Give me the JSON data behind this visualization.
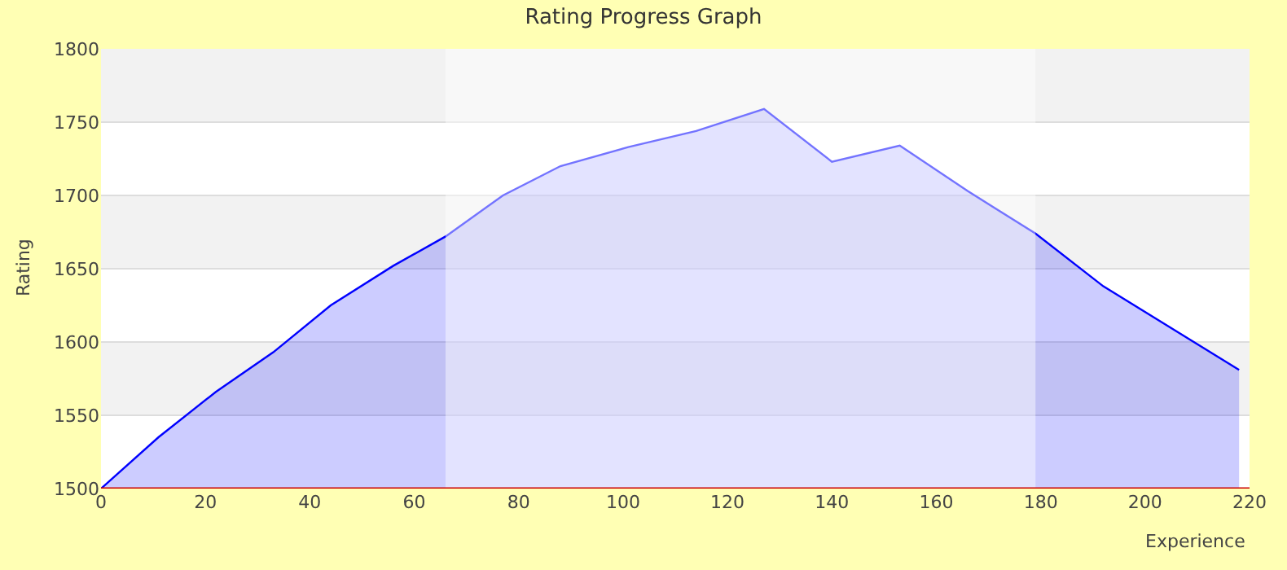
{
  "chart_data": {
    "type": "area",
    "title": "Rating Progress Graph",
    "xlabel": "Experience",
    "ylabel": "Rating",
    "x": [
      0,
      11,
      22,
      33,
      44,
      56,
      66,
      77,
      88,
      101,
      114,
      127,
      140,
      153,
      166,
      179,
      192,
      218
    ],
    "series": [
      {
        "color": "#0000ff",
        "values": [
          1500,
          1535,
          1566,
          1593,
          1625,
          1652,
          1672,
          1700,
          1720,
          1733,
          1744,
          1759,
          1723,
          1734,
          1703,
          1674,
          1638,
          1581
        ]
      }
    ],
    "bands": [
      {
        "axis": "x",
        "from": 66,
        "to": 179,
        "color": "#ffffff"
      }
    ],
    "xlim": [
      0,
      220
    ],
    "xticks": [
      0,
      20,
      40,
      60,
      80,
      100,
      120,
      140,
      160,
      180,
      200,
      220
    ],
    "ylim": [
      1500,
      1800
    ],
    "yticks": [
      1500,
      1550,
      1600,
      1650,
      1700,
      1750,
      1800
    ],
    "grid": "y"
  }
}
